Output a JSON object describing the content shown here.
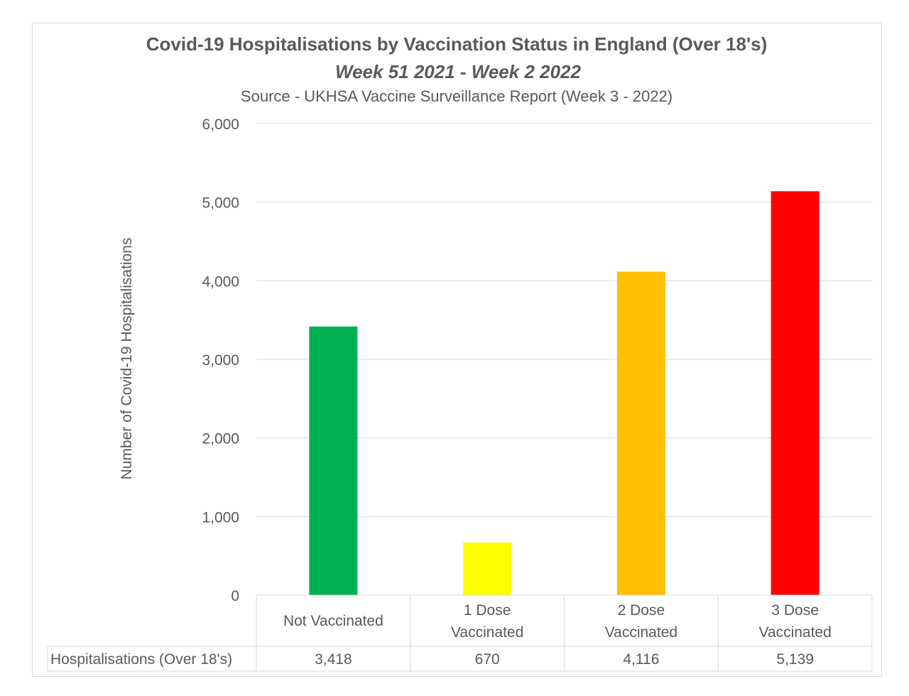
{
  "chart_data": {
    "type": "bar",
    "title": "Covid-19 Hospitalisations by Vaccination Status in England (Over 18's)",
    "subtitle": "Week 51 2021 - Week 2 2022",
    "source": "Source - UKHSA Vaccine Surveillance Report (Week 3 - 2022)",
    "xlabel": "",
    "ylabel": "Number of Covid-19 Hospitalisations",
    "ylim": [
      0,
      6000
    ],
    "yticks": [
      0,
      1000,
      2000,
      3000,
      4000,
      5000,
      6000
    ],
    "ytick_labels": [
      "0",
      "1,000",
      "2,000",
      "3,000",
      "4,000",
      "5,000",
      "6,000"
    ],
    "grid": true,
    "legend": "none",
    "categories": [
      [
        "Not Vaccinated"
      ],
      [
        "1 Dose",
        "Vaccinated"
      ],
      [
        "2 Dose",
        "Vaccinated"
      ],
      [
        "3 Dose",
        "Vaccinated"
      ]
    ],
    "series": [
      {
        "name": "Hospitalisations (Over 18's)",
        "values": [
          3418,
          670,
          4116,
          5139
        ],
        "value_labels": [
          "3,418",
          "670",
          "4,116",
          "5,139"
        ],
        "colors": [
          "#00b050",
          "#ffff00",
          "#ffc000",
          "#ff0000"
        ]
      }
    ],
    "data_table": {
      "row_header": "Hospitalisations (Over 18's)",
      "values": [
        "3,418",
        "670",
        "4,116",
        "5,139"
      ]
    }
  }
}
